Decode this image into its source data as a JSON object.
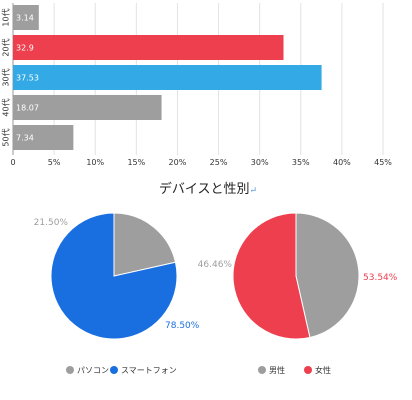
{
  "chart_data": [
    {
      "type": "bar",
      "orientation": "horizontal",
      "categories": [
        "10代",
        "20代",
        "30代",
        "40代",
        "50代"
      ],
      "values": [
        3.14,
        32.9,
        37.53,
        18.07,
        7.34
      ],
      "value_labels": [
        "3.14",
        "32.9",
        "37.53",
        "18.07",
        "7.34"
      ],
      "bar_colors": [
        "#9e9e9e",
        "#ee3f4e",
        "#33a9e5",
        "#9e9e9e",
        "#9e9e9e"
      ],
      "xlim": [
        0,
        45
      ],
      "xticks": [
        "0",
        "5%",
        "10%",
        "15%",
        "20%",
        "25%",
        "30%",
        "35%",
        "40%",
        "45%"
      ],
      "grid": true
    },
    {
      "type": "pie",
      "title": "デバイスと性別",
      "title_mark": "↵",
      "slices": [
        {
          "name": "パソコン",
          "value": 21.5,
          "label": "21.50%",
          "color": "#9e9e9e"
        },
        {
          "name": "スマートフォン",
          "value": 78.5,
          "label": "78.50%",
          "color": "#1a6fe0"
        }
      ],
      "legend_position": "bottom"
    },
    {
      "type": "pie",
      "slices": [
        {
          "name": "男性",
          "value": 46.46,
          "label": "46.46%",
          "color": "#9e9e9e"
        },
        {
          "name": "女性",
          "value": 53.54,
          "label": "53.54%",
          "color": "#ee3f4e"
        }
      ],
      "legend_position": "bottom"
    }
  ]
}
